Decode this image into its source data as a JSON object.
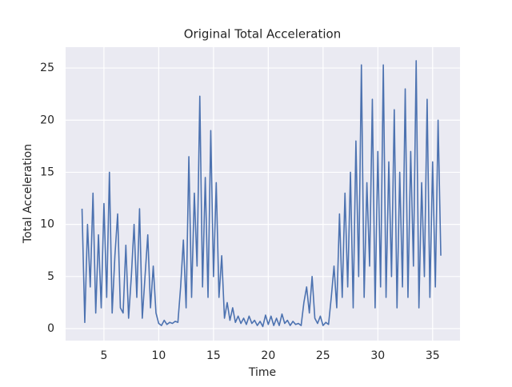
{
  "chart_data": {
    "type": "line",
    "title": "Original Total Acceleration",
    "x_label": "Time",
    "y_label": "Total Acceleration",
    "x": [
      3,
      3.25,
      3.5,
      3.75,
      4,
      4.25,
      4.5,
      4.75,
      5,
      5.25,
      5.5,
      5.75,
      6,
      6.25,
      6.5,
      6.75,
      7,
      7.25,
      7.5,
      7.75,
      8,
      8.25,
      8.5,
      8.75,
      9,
      9.25,
      9.5,
      9.75,
      10,
      10.25,
      10.5,
      10.75,
      11,
      11.25,
      11.5,
      11.75,
      12,
      12.25,
      12.5,
      12.75,
      13,
      13.25,
      13.5,
      13.75,
      14,
      14.25,
      14.5,
      14.75,
      15,
      15.25,
      15.5,
      15.75,
      16,
      16.25,
      16.5,
      16.75,
      17,
      17.25,
      17.5,
      17.75,
      18,
      18.25,
      18.5,
      18.75,
      19,
      19.25,
      19.5,
      19.75,
      20,
      20.25,
      20.5,
      20.75,
      21,
      21.25,
      21.5,
      21.75,
      22,
      22.25,
      22.5,
      22.75,
      23,
      23.25,
      23.5,
      23.75,
      24,
      24.25,
      24.5,
      24.75,
      25,
      25.25,
      25.5,
      25.75,
      26,
      26.25,
      26.5,
      26.75,
      27,
      27.25,
      27.5,
      27.75,
      28,
      28.25,
      28.5,
      28.75,
      29,
      29.25,
      29.5,
      29.75,
      30,
      30.25,
      30.5,
      30.75,
      31,
      31.25,
      31.5,
      31.75,
      32,
      32.25,
      32.5,
      32.75,
      33,
      33.25,
      33.5,
      33.75,
      34,
      34.25,
      34.5,
      34.75,
      35,
      35.25,
      35.5,
      35.75
    ],
    "series": [
      {
        "color": "#4c72b0",
        "values": [
          11.5,
          0.6,
          10,
          4,
          13,
          1.5,
          9,
          2,
          12,
          3,
          15,
          1.5,
          7,
          11,
          2,
          1.5,
          8,
          1,
          5,
          10,
          3,
          11.5,
          1,
          5,
          9,
          2,
          6,
          1.5,
          0.5,
          0.3,
          0.8,
          0.4,
          0.6,
          0.5,
          0.7,
          0.6,
          4,
          8.5,
          2,
          16.5,
          3,
          13,
          6,
          22.3,
          4,
          14.5,
          3,
          19,
          5,
          14,
          3,
          7,
          1,
          2.5,
          0.8,
          2,
          0.6,
          1.2,
          0.5,
          1,
          0.4,
          1.2,
          0.5,
          0.8,
          0.3,
          0.7,
          0.2,
          1.3,
          0.4,
          1.2,
          0.3,
          1.0,
          0.3,
          1.4,
          0.5,
          0.8,
          0.3,
          0.7,
          0.4,
          0.5,
          0.3,
          2.5,
          4,
          1.5,
          5,
          1,
          0.5,
          1.2,
          0.3,
          0.6,
          0.4,
          3,
          6,
          2,
          11,
          3,
          13,
          4,
          15,
          2,
          18,
          5,
          25.3,
          3,
          14,
          6,
          22,
          2,
          17,
          4,
          25.3,
          3,
          16,
          5,
          21,
          2,
          15,
          4,
          23,
          3,
          17,
          6,
          25.7,
          2,
          14,
          5,
          22,
          3,
          16,
          4,
          20,
          7
        ]
      }
    ],
    "xlim": [
      1.5,
      37.5
    ],
    "ylim": [
      -1.15,
      27
    ],
    "xticks": [
      5,
      10,
      15,
      20,
      25,
      30,
      35
    ],
    "yticks": [
      0,
      5,
      10,
      15,
      20,
      25
    ],
    "grid": true
  }
}
